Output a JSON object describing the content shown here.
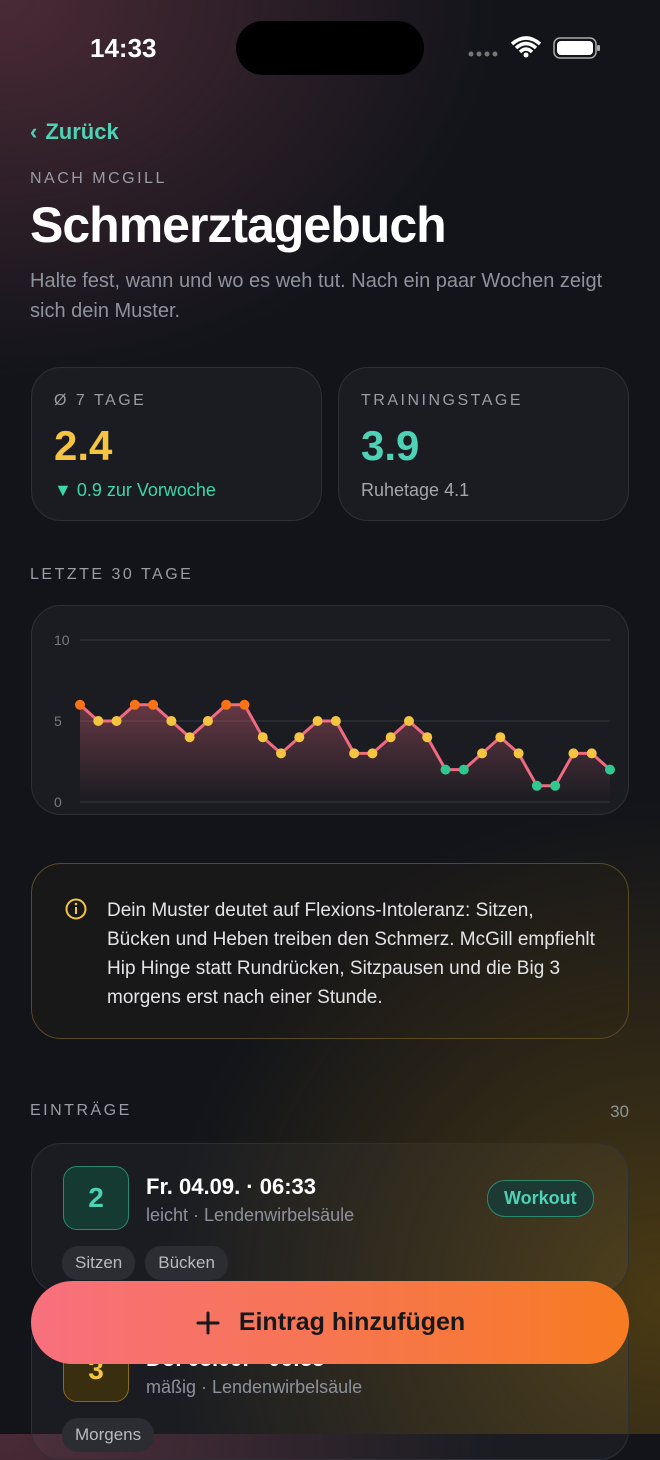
{
  "status": {
    "time": "14:33"
  },
  "nav": {
    "back": "Zurück"
  },
  "header": {
    "eyebrow": "NACH MCGILL",
    "title": "Schmerztagebuch",
    "subtitle": "Halte fest, wann und wo es weh tut. Nach ein paar Wochen zeigt sich dein Muster."
  },
  "stats": [
    {
      "label": "Ø 7 TAGE",
      "value": "2.4",
      "note": "▼ 0.9 zur Vorwoche"
    },
    {
      "label": "TRAININGSTAGE",
      "value": "3.9",
      "note": "Ruhetage 4.1"
    }
  ],
  "chart_section": {
    "label": "LETZTE 30 TAGE"
  },
  "chart_data": {
    "type": "line",
    "values": [
      6,
      5,
      5,
      6,
      6,
      5,
      4,
      5,
      6,
      6,
      4,
      3,
      4,
      5,
      5,
      3,
      3,
      4,
      5,
      4,
      2,
      2,
      3,
      4,
      3,
      1,
      1,
      3,
      3,
      2
    ],
    "point_colors": [
      "#f97316",
      "#f5c542",
      "#f5c542",
      "#f97316",
      "#f97316",
      "#f5c542",
      "#f5c542",
      "#f5c542",
      "#f97316",
      "#f97316",
      "#f5c542",
      "#f5c542",
      "#f5c542",
      "#f5c542",
      "#f5c542",
      "#f5c542",
      "#f5c542",
      "#f5c542",
      "#f5c542",
      "#f5c542",
      "#2fc98f",
      "#2fc98f",
      "#f5c542",
      "#f5c542",
      "#f5c542",
      "#2fc98f",
      "#2fc98f",
      "#f5c542",
      "#f5c542",
      "#2fc98f"
    ],
    "color": "#f06a80",
    "ylim": [
      0,
      10
    ],
    "yticks": [
      0,
      5,
      10
    ],
    "grid": true
  },
  "insight": {
    "text": "Dein Muster deutet auf Flexions-Intoleranz: Sitzen, Bücken und Heben treiben den Schmerz. McGill empfiehlt Hip Hinge statt Rundrücken, Sitzpausen und die Big 3 morgens erst nach einer Stunde."
  },
  "entries": {
    "label": "EINTRÄGE",
    "count": "30",
    "items": [
      {
        "score": "2",
        "title": "Fr. 04.09. · 06:33",
        "detail": "leicht · Lendenwirbelsäule",
        "badge": "Workout",
        "tags": [
          "Sitzen",
          "Bücken"
        ]
      },
      {
        "score": "3",
        "title": "Do. 03.09. · 06:33",
        "detail": "mäßig · Lendenwirbelsäule",
        "tags": [
          "Morgens"
        ]
      }
    ]
  },
  "action": {
    "label": "Eintrag hinzufügen"
  }
}
